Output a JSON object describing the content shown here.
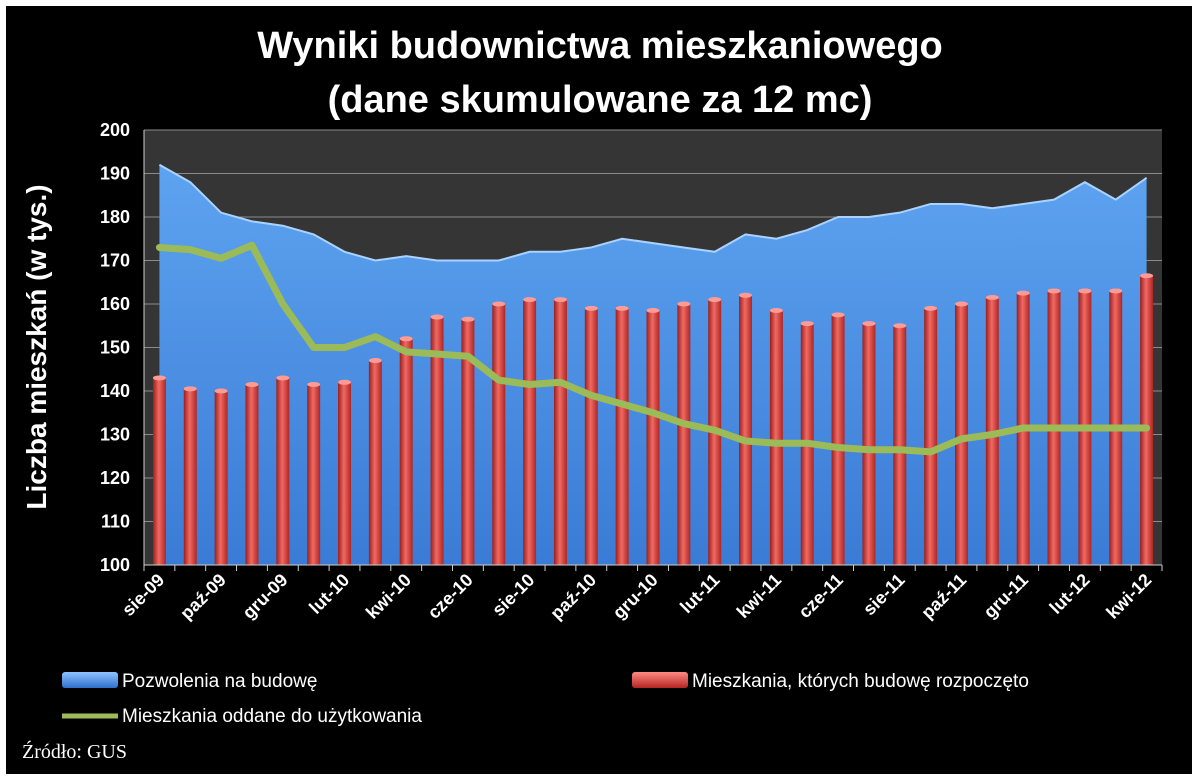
{
  "chart_data": {
    "type": "bar",
    "title": "Wyniki budownictwa mieszkaniowego",
    "subtitle": "(dane skumulowane za 12 mc)",
    "ylabel": "Liczba mieszkań (w tys.)",
    "xlabel": "",
    "ylim": [
      100,
      200
    ],
    "yticks": [
      100,
      110,
      120,
      130,
      140,
      150,
      160,
      170,
      180,
      190,
      200
    ],
    "grid": true,
    "legend_position": "bottom",
    "categories": [
      "sie-09",
      "wrz-09",
      "paź-09",
      "lis-09",
      "gru-09",
      "sty-10",
      "lut-10",
      "mar-10",
      "kwi-10",
      "maj-10",
      "cze-10",
      "lip-10",
      "sie-10",
      "wrz-10",
      "paź-10",
      "lis-10",
      "gru-10",
      "sty-11",
      "lut-11",
      "mar-11",
      "kwi-11",
      "maj-11",
      "cze-11",
      "lip-11",
      "sie-11",
      "wrz-11",
      "paź-11",
      "lis-11",
      "gru-11",
      "sty-12",
      "lut-12",
      "mar-12",
      "kwi-12"
    ],
    "tick_labels": [
      "sie-09",
      "paź-09",
      "gru-09",
      "lut-10",
      "kwi-10",
      "cze-10",
      "sie-10",
      "paź-10",
      "gru-10",
      "lut-11",
      "kwi-11",
      "cze-11",
      "sie-11",
      "paź-11",
      "gru-11",
      "lut-12",
      "kwi-12"
    ],
    "series": [
      {
        "name": "Pozwolenia na budowę",
        "type": "area",
        "color": "#4a8fe0",
        "values": [
          192,
          188,
          181,
          179,
          178,
          176,
          172,
          170,
          171,
          170,
          170,
          170,
          172,
          172,
          173,
          175,
          174,
          173,
          172,
          176,
          175,
          177,
          180,
          180,
          181,
          183,
          183,
          182,
          183,
          184,
          188,
          184,
          189
        ]
      },
      {
        "name": "Mieszkania, których budowę rozpoczęto",
        "type": "bar",
        "color": "#d6322f",
        "values": [
          143,
          140.5,
          140,
          141.5,
          143,
          141.5,
          142,
          147,
          152,
          157,
          156.5,
          160,
          161,
          161,
          159,
          159,
          158.5,
          160,
          161,
          162,
          158.5,
          155.5,
          157.5,
          155.5,
          155,
          159,
          160,
          161.5,
          162.5,
          163,
          163,
          163,
          166.5
        ]
      },
      {
        "name": "Mieszkania oddane  do użytkowania",
        "type": "line",
        "color": "#9bbb59",
        "values": [
          173,
          172.5,
          170.5,
          173.5,
          160,
          150,
          150,
          152.5,
          149,
          148.5,
          148,
          142.5,
          141.5,
          142,
          139,
          137,
          135,
          132.5,
          131,
          128.5,
          128,
          128,
          127,
          126.5,
          126.5,
          126,
          129,
          130,
          131.5,
          131.5,
          131.5,
          131.5,
          131.5
        ]
      }
    ]
  },
  "source": "Źródło: GUS"
}
